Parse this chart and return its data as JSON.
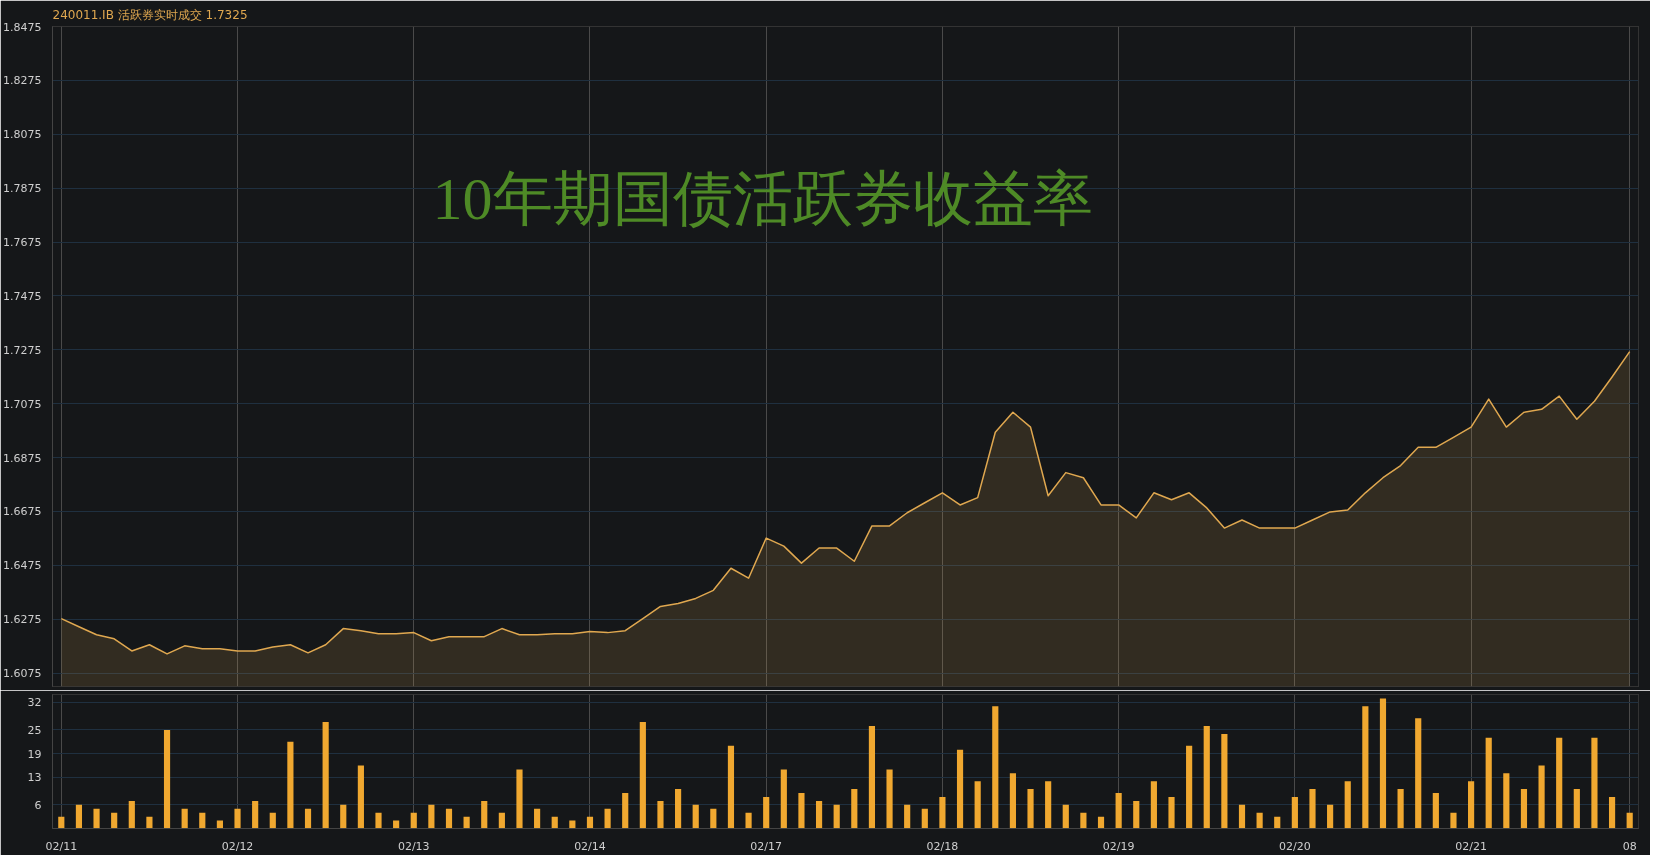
{
  "chart_data": [
    {
      "type": "area",
      "subtitle": "240011.IB  活跃券实时成交 1.7325",
      "title": "10年期国债活跃券收益率",
      "color": "#e0a850",
      "categories": [
        null,
        null,
        null,
        null,
        null,
        null,
        null,
        null,
        null,
        null,
        null,
        null,
        null,
        null,
        null,
        null,
        null,
        null,
        null,
        null,
        null,
        null,
        null,
        null,
        null,
        null,
        null,
        null,
        null,
        null,
        null,
        null,
        null,
        null,
        null,
        null,
        null,
        null,
        null,
        null,
        null,
        null,
        null,
        null,
        null,
        null,
        null,
        null,
        null,
        null,
        null,
        null,
        null,
        null,
        null,
        null,
        null,
        null,
        null,
        null,
        null,
        null,
        null,
        null,
        null,
        null,
        null,
        null,
        null,
        null,
        null,
        null,
        null,
        null,
        null,
        null,
        null,
        null,
        null,
        null,
        null,
        null,
        null,
        null,
        null,
        null,
        null,
        null,
        null,
        null
      ],
      "values": [
        1.6277,
        1.6247,
        1.6217,
        1.6202,
        1.6157,
        1.618,
        1.6146,
        1.6176,
        1.6165,
        1.6165,
        1.6157,
        1.6157,
        1.6172,
        1.618,
        1.615,
        1.618,
        1.624,
        1.6232,
        1.6221,
        1.6221,
        1.6225,
        1.6195,
        1.621,
        1.621,
        1.621,
        1.624,
        1.6217,
        1.6217,
        1.6221,
        1.6221,
        1.6229,
        1.6225,
        1.6232,
        1.6277,
        1.6322,
        1.6333,
        1.6352,
        1.6382,
        1.6464,
        1.6427,
        1.6576,
        1.6546,
        1.6483,
        1.6539,
        1.6539,
        1.649,
        1.6621,
        1.6621,
        1.667,
        1.6707,
        1.6744,
        1.6699,
        1.6726,
        1.6969,
        1.7043,
        1.6988,
        1.6733,
        1.6819,
        1.68,
        1.6699,
        1.6699,
        1.6651,
        1.6744,
        1.6718,
        1.6744,
        1.6688,
        1.6613,
        1.6643,
        1.6613,
        1.6613,
        1.6613,
        1.6643,
        1.6673,
        1.668,
        1.6744,
        1.68,
        1.6845,
        1.6913,
        1.6913,
        1.695,
        1.6988,
        1.7092,
        1.6988,
        1.7043,
        1.7054,
        1.7103,
        1.7017,
        1.7084,
        1.7174,
        1.7268
      ],
      "ylim": [
        1.6025,
        1.8475
      ],
      "yticks": [
        1.6075,
        1.6275,
        1.6475,
        1.6675,
        1.6875,
        1.7075,
        1.7275,
        1.7475,
        1.7675,
        1.7875,
        1.8075,
        1.8275,
        1.8475
      ],
      "grid": true,
      "tick_labels": "y"
    },
    {
      "type": "bar",
      "color": "#f0a830",
      "categories": [
        "02/11",
        null,
        null,
        null,
        null,
        null,
        null,
        null,
        null,
        null,
        "02/12",
        null,
        null,
        null,
        null,
        null,
        null,
        null,
        null,
        null,
        "02/13",
        null,
        null,
        null,
        null,
        null,
        null,
        null,
        null,
        null,
        "02/14",
        null,
        null,
        null,
        null,
        null,
        null,
        null,
        null,
        null,
        "02/17",
        null,
        null,
        null,
        null,
        null,
        null,
        null,
        null,
        null,
        "02/18",
        null,
        null,
        null,
        null,
        null,
        null,
        null,
        null,
        null,
        "02/19",
        null,
        null,
        null,
        null,
        null,
        null,
        null,
        null,
        null,
        "02/20",
        null,
        null,
        null,
        null,
        null,
        null,
        null,
        null,
        null,
        "02/21",
        null,
        null,
        null,
        null,
        null,
        null,
        null,
        null,
        "08"
      ],
      "values": [
        3,
        6,
        5,
        4,
        7,
        3,
        25,
        5,
        4,
        2,
        5,
        7,
        4,
        22,
        5,
        27,
        6,
        16,
        4,
        2,
        4,
        6,
        5,
        3,
        7,
        4,
        15,
        5,
        3,
        2,
        3,
        5,
        9,
        27,
        7,
        10,
        6,
        5,
        21,
        4,
        8,
        15,
        9,
        7,
        6,
        10,
        26,
        15,
        6,
        5,
        8,
        20,
        12,
        31,
        14,
        10,
        12,
        6,
        4,
        3,
        9,
        7,
        12,
        8,
        21,
        26,
        24,
        6,
        4,
        3,
        8,
        10,
        6,
        12,
        31,
        33,
        10,
        28,
        9,
        4,
        12,
        23,
        14,
        10,
        16,
        23,
        10,
        23,
        8,
        4
      ],
      "ylim": [
        0,
        34
      ],
      "yticks": [
        6,
        13,
        19,
        25,
        32
      ],
      "grid": true
    }
  ]
}
